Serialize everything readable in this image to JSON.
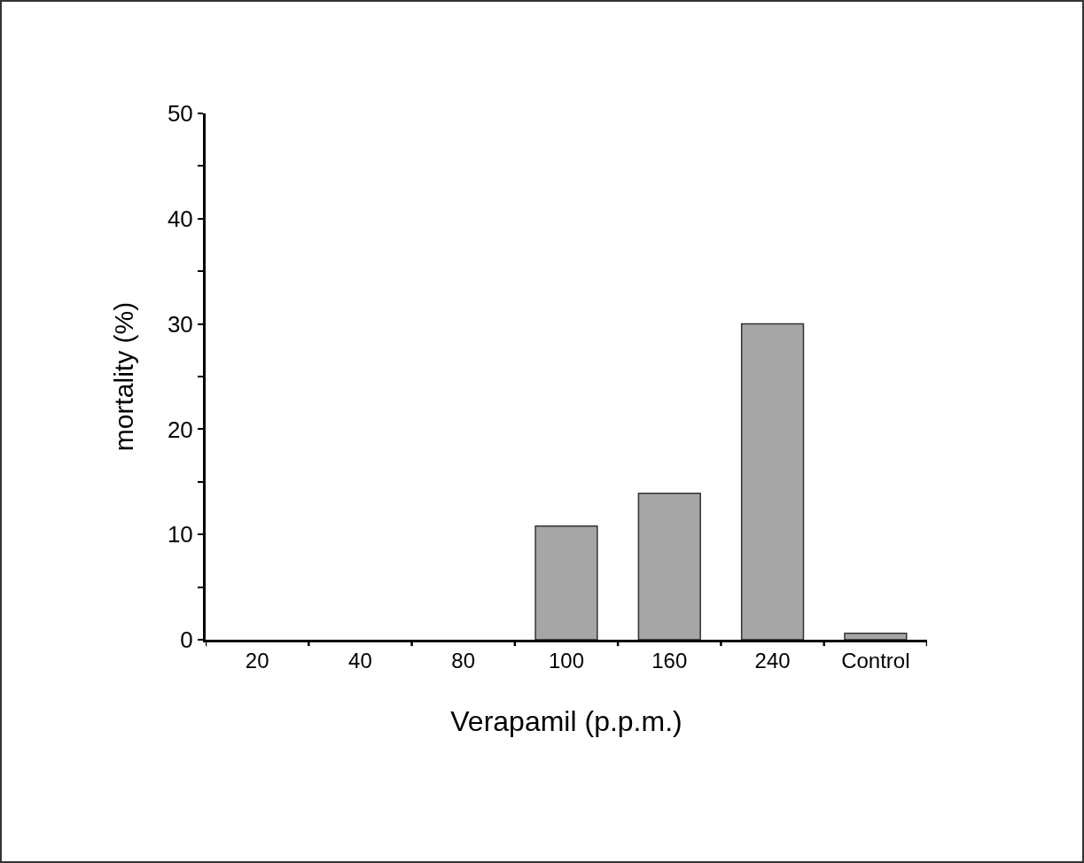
{
  "chart_data": {
    "type": "bar",
    "xlabel": "Verapamil (p.p.m.)",
    "ylabel": "mortality (%)",
    "categories": [
      "20",
      "40",
      "80",
      "100",
      "160",
      "240",
      "Control"
    ],
    "values": [
      0,
      0,
      0,
      10.8,
      13.9,
      30,
      0.6
    ],
    "color": "#a6a6a6",
    "ylim": [
      0,
      50
    ],
    "yticks": [
      0,
      {
        "value": 5,
        "label": null
      },
      10,
      {
        "value": 15,
        "label": null
      },
      20,
      {
        "value": 25,
        "label": null
      },
      30,
      {
        "value": 35,
        "label": null
      },
      40,
      {
        "value": 45,
        "label": null
      },
      50
    ],
    "grid": false
  }
}
